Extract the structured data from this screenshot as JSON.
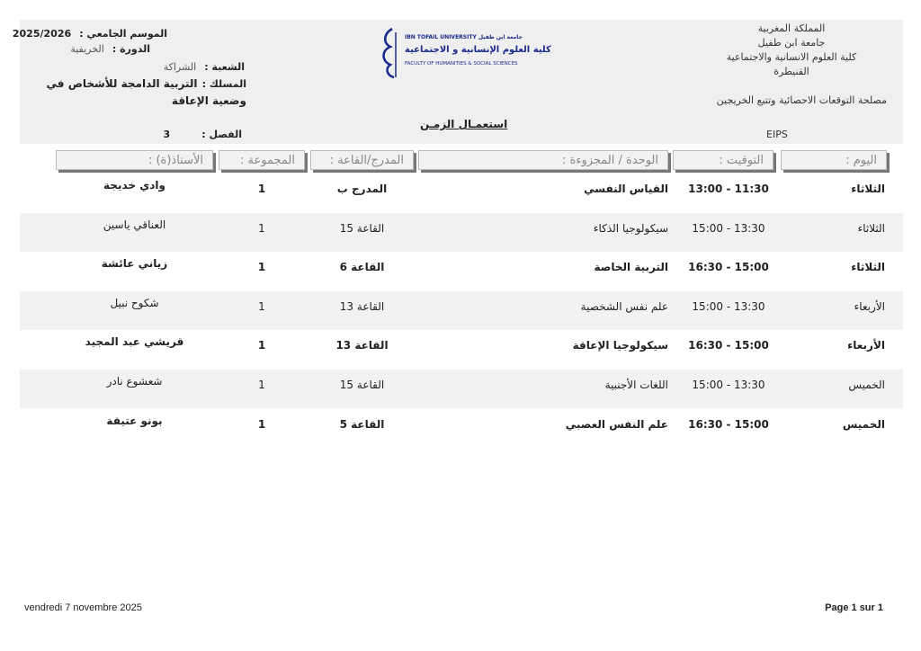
{
  "header": {
    "season_label": "الموسم الجامعي :",
    "season_value": "2025/2026",
    "session_label": "الدورة :",
    "session_value": "الخريفية",
    "branch_label": "الشعبة :",
    "branch_value": "الشراكة",
    "track_label": "المسلك :",
    "track_value": "التربية الدامجة للأشخاص في وضعية الإعاقة",
    "semester_label": "الفصل :",
    "semester_value": "3",
    "title": "استعمـال الزمـن",
    "logo_text": [
      "IBN TOFAIL UNIVERSITY جامعة ابن طفيل",
      "كلية العلوم الإنسانية و الاجتماعية",
      "FACULTY OF HUMANITIES & SOCIAL SCIENCES"
    ],
    "institution": [
      "المملكة المغربية",
      "جامعة ابن طفيل",
      "كلية العلوم الانسانية والاجتماعية",
      "القنيطرة"
    ],
    "service": "مصلحة التوقعات الاحصائية وتتبع الخريجين",
    "code": "EIPS"
  },
  "table": {
    "columns": {
      "day": "اليوم :",
      "time": "التوقيت :",
      "module": "الوحدة / المجزوءة :",
      "room": "المدرج/القاعة :",
      "group": "المجموعة :",
      "teacher": "الأستاذ(ة) :"
    },
    "rows": [
      {
        "day": "الثلاثاء",
        "time": "11:30 - 13:00",
        "module": "القياس النفسي",
        "room": "المدرج ب",
        "group": "1",
        "teacher": "وادي خديجة"
      },
      {
        "day": "الثلاثاء",
        "time": "13:30 - 15:00",
        "module": "سيكولوجيا الذكاء",
        "room": "القاعة 15",
        "group": "1",
        "teacher": "العناقي ياسين"
      },
      {
        "day": "الثلاثاء",
        "time": "15:00 - 16:30",
        "module": "التربية الخاصة",
        "room": "القاعة 6",
        "group": "1",
        "teacher": "زياني عائشة"
      },
      {
        "day": "الأربعاء",
        "time": "13:30 - 15:00",
        "module": "علم نفس الشخصية",
        "room": "القاعة 13",
        "group": "1",
        "teacher": "شكوح نبيل"
      },
      {
        "day": "الأربعاء",
        "time": "15:00 - 16:30",
        "module": "سيكولوجيا الإعاقة",
        "room": "القاعة 13",
        "group": "1",
        "teacher": "قريشي عبد المجيد"
      },
      {
        "day": "الخميس",
        "time": "13:30 - 15:00",
        "module": "اللغات الأجنبية",
        "room": "القاعة 15",
        "group": "1",
        "teacher": "شعشوع نادر"
      },
      {
        "day": "الخميس",
        "time": "15:00 - 16:30",
        "module": "علم النفس العصبي",
        "room": "القاعة 5",
        "group": "1",
        "teacher": "بونو عتيقة"
      }
    ]
  },
  "footer": {
    "date": "vendredi 7 novembre 2025",
    "page": "Page 1 sur 1"
  },
  "colors": {
    "header_bg": "#efefef",
    "alt_row_bg": "#f2f2f2",
    "logo_blue": "#1a2a8a"
  }
}
